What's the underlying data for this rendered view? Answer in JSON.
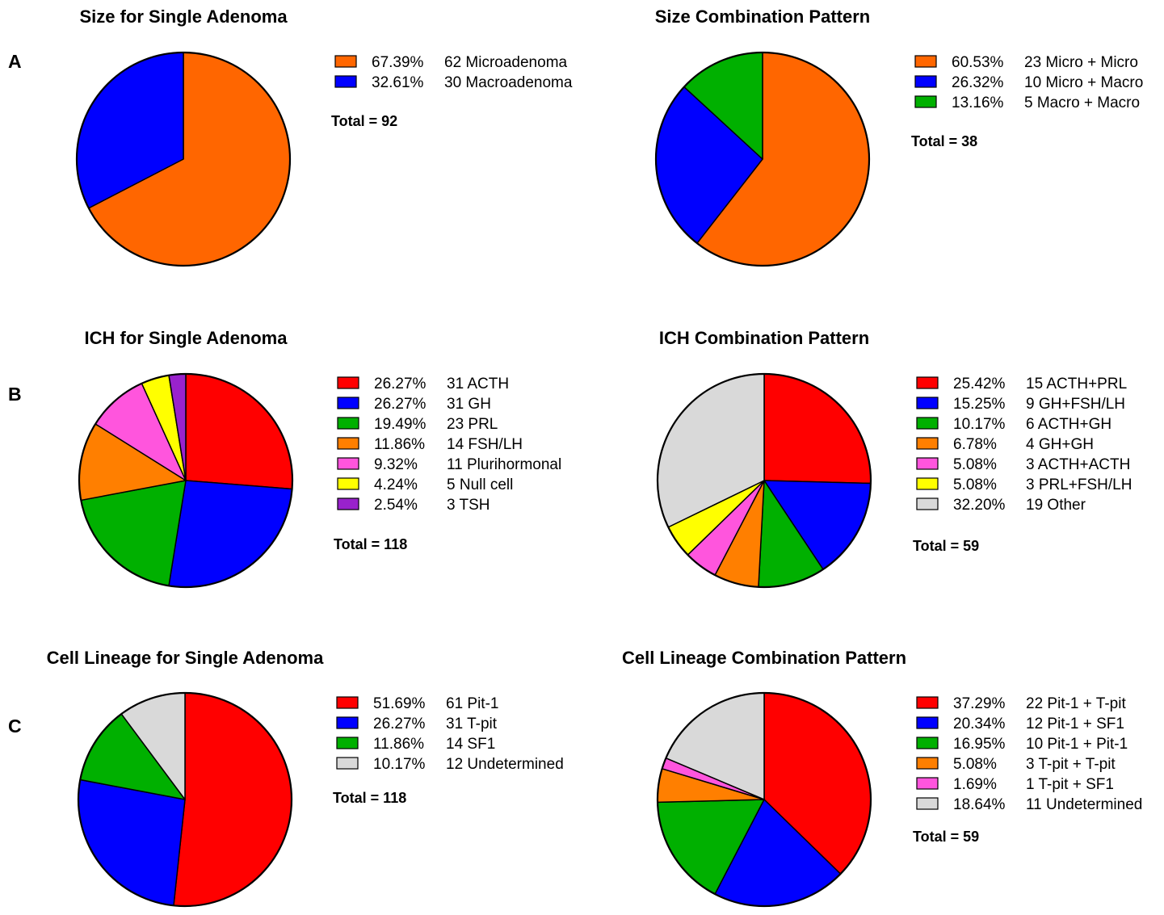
{
  "chart_data": [
    {
      "type": "pie",
      "panel": "A",
      "title": "Size for Single Adenoma",
      "slices": [
        {
          "percent": "67.39%",
          "count": 62,
          "label": "Microadenoma",
          "color": "#ff6600"
        },
        {
          "percent": "32.61%",
          "count": 30,
          "label": "Macroadenoma",
          "color": "#0000ff"
        }
      ],
      "total_label": "Total = 92"
    },
    {
      "type": "pie",
      "title": "Size Combination Pattern",
      "slices": [
        {
          "percent": "60.53%",
          "count": 23,
          "label": "Micro + Micro",
          "color": "#ff6600"
        },
        {
          "percent": "26.32%",
          "count": 10,
          "label": "Micro + Macro",
          "color": "#0000ff"
        },
        {
          "percent": "13.16%",
          "count": 5,
          "label": "Macro + Macro",
          "color": "#00b000"
        }
      ],
      "total_label": "Total = 38"
    },
    {
      "type": "pie",
      "panel": "B",
      "title": "ICH for Single Adenoma",
      "slices": [
        {
          "percent": "26.27%",
          "count": 31,
          "label": "ACTH",
          "color": "#ff0000"
        },
        {
          "percent": "26.27%",
          "count": 31,
          "label": "GH",
          "color": "#0000ff"
        },
        {
          "percent": "19.49%",
          "count": 23,
          "label": "PRL",
          "color": "#00b000"
        },
        {
          "percent": "11.86%",
          "count": 14,
          "label": "FSH/LH",
          "color": "#ff7f00"
        },
        {
          "percent": "9.32%",
          "count": 11,
          "label": "Plurihormonal",
          "color": "#ff55dd"
        },
        {
          "percent": "4.24%",
          "count": 5,
          "label": "Null cell",
          "color": "#ffff00"
        },
        {
          "percent": "2.54%",
          "count": 3,
          "label": "TSH",
          "color": "#9922cc"
        }
      ],
      "total_label": "Total = 118"
    },
    {
      "type": "pie",
      "title": "ICH Combination Pattern",
      "slices": [
        {
          "percent": "25.42%",
          "count": 15,
          "label": "ACTH+PRL",
          "color": "#ff0000"
        },
        {
          "percent": "15.25%",
          "count": 9,
          "label": "GH+FSH/LH",
          "color": "#0000ff"
        },
        {
          "percent": "10.17%",
          "count": 6,
          "label": "ACTH+GH",
          "color": "#00b000"
        },
        {
          "percent": "6.78%",
          "count": 4,
          "label": "GH+GH",
          "color": "#ff7f00"
        },
        {
          "percent": "5.08%",
          "count": 3,
          "label": "ACTH+ACTH",
          "color": "#ff55dd"
        },
        {
          "percent": "5.08%",
          "count": 3,
          "label": "PRL+FSH/LH",
          "color": "#ffff00"
        },
        {
          "percent": "32.20%",
          "count": 19,
          "label": "Other",
          "color": "#d9d9d9"
        }
      ],
      "total_label": "Total = 59"
    },
    {
      "type": "pie",
      "panel": "C",
      "title": "Cell Lineage for Single Adenoma",
      "slices": [
        {
          "percent": "51.69%",
          "count": 61,
          "label": "Pit-1",
          "color": "#ff0000"
        },
        {
          "percent": "26.27%",
          "count": 31,
          "label": "T-pit",
          "color": "#0000ff"
        },
        {
          "percent": "11.86%",
          "count": 14,
          "label": "SF1",
          "color": "#00b000"
        },
        {
          "percent": "10.17%",
          "count": 12,
          "label": "Undetermined",
          "color": "#d9d9d9"
        }
      ],
      "total_label": "Total = 118"
    },
    {
      "type": "pie",
      "title": "Cell Lineage Combination Pattern",
      "slices": [
        {
          "percent": "37.29%",
          "count": 22,
          "label": "Pit-1 + T-pit",
          "color": "#ff0000"
        },
        {
          "percent": "20.34%",
          "count": 12,
          "label": "Pit-1 + SF1",
          "color": "#0000ff"
        },
        {
          "percent": "16.95%",
          "count": 10,
          "label": "Pit-1 + Pit-1",
          "color": "#00b000"
        },
        {
          "percent": "5.08%",
          "count": 3,
          "label": "T-pit + T-pit",
          "color": "#ff7f00"
        },
        {
          "percent": "1.69%",
          "count": 1,
          "label": "T-pit + SF1",
          "color": "#ff55dd"
        },
        {
          "percent": "18.64%",
          "count": 11,
          "label": "Undetermined",
          "color": "#d9d9d9"
        }
      ],
      "total_label": "Total = 59"
    }
  ]
}
